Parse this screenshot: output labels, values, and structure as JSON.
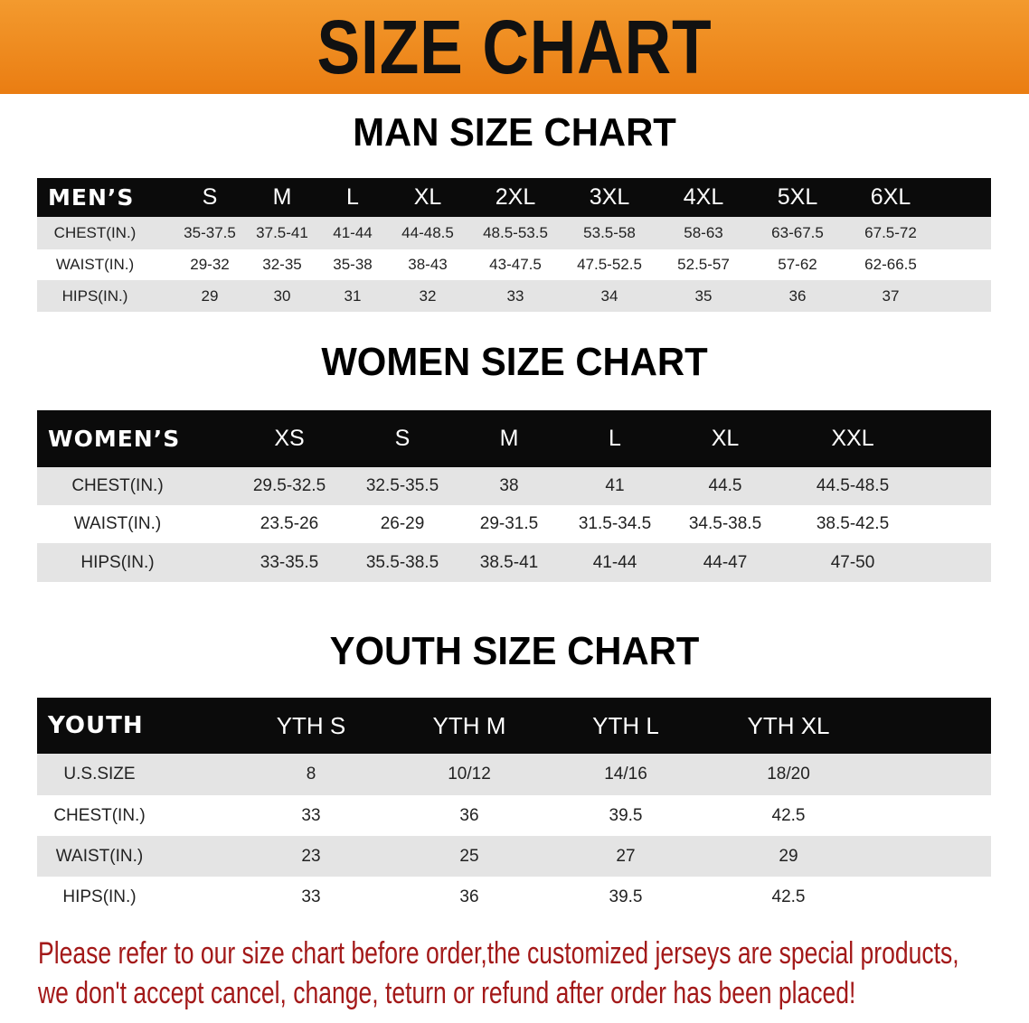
{
  "banner": {
    "title": "SIZE CHART"
  },
  "men": {
    "title": "MAN SIZE CHART",
    "header": [
      "MEN’S",
      "S",
      "M",
      "L",
      "XL",
      "2XL",
      "3XL",
      "4XL",
      "5XL",
      "6XL"
    ],
    "rows": [
      [
        "CHEST(IN.)",
        "35-37.5",
        "37.5-41",
        "41-44",
        "44-48.5",
        "48.5-53.5",
        "53.5-58",
        "58-63",
        "63-67.5",
        "67.5-72"
      ],
      [
        "WAIST(IN.)",
        "29-32",
        "32-35",
        "35-38",
        "38-43",
        "43-47.5",
        "47.5-52.5",
        "52.5-57",
        "57-62",
        "62-66.5"
      ],
      [
        "HIPS(IN.)",
        "29",
        "30",
        "31",
        "32",
        "33",
        "34",
        "35",
        "36",
        "37"
      ]
    ]
  },
  "women": {
    "title": "WOMEN SIZE CHART",
    "header": [
      "WOMEN’S",
      "XS",
      "S",
      "M",
      "L",
      "XL",
      "XXL"
    ],
    "rows": [
      [
        "CHEST(IN.)",
        "29.5-32.5",
        "32.5-35.5",
        "38",
        "41",
        "44.5",
        "44.5-48.5"
      ],
      [
        "WAIST(IN.)",
        "23.5-26",
        "26-29",
        "29-31.5",
        "31.5-34.5",
        "34.5-38.5",
        "38.5-42.5"
      ],
      [
        "HIPS(IN.)",
        "33-35.5",
        "35.5-38.5",
        "38.5-41",
        "41-44",
        "44-47",
        "47-50"
      ]
    ]
  },
  "youth": {
    "title": "YOUTH SIZE CHART",
    "header": [
      "YOUTH",
      "YTH S",
      "YTH M",
      "YTH L",
      "YTH XL"
    ],
    "rows": [
      [
        "U.S.SIZE",
        "8",
        "10/12",
        "14/16",
        "18/20"
      ],
      [
        "CHEST(IN.)",
        "33",
        "36",
        "39.5",
        "42.5"
      ],
      [
        "WAIST(IN.)",
        "23",
        "25",
        "27",
        "29"
      ],
      [
        "HIPS(IN.)",
        "33",
        "36",
        "39.5",
        "42.5"
      ]
    ]
  },
  "note": {
    "line1": "Please refer to our size chart before order,the customized jerseys are special products,",
    "line2": "we don't accept cancel, change, teturn or refund after order has been placed!"
  },
  "colors": {
    "banner": "#ee8a1f",
    "header": "#0b0b0b",
    "stripe": "#e4e4e4",
    "note": "#a31919"
  }
}
